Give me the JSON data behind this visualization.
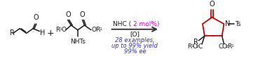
{
  "fig_width": 3.78,
  "fig_height": 0.97,
  "dpi": 100,
  "bg_color": "#ffffff",
  "arrow_color": "#333333",
  "structure_color": "#1a1a1a",
  "red_color": "#cc0000",
  "purple_color": "#cc00cc",
  "blue_color": "#3333cc",
  "nhc_text1": "NHC ( ",
  "nhc_text2": "2 mol%)",
  "oxidant_label": "[O]",
  "stats_line1": "28 examples,",
  "stats_line2": "up to 99% yield",
  "stats_line3": "99% ee",
  "ts_label": "Ts",
  "nhts_label": "NHTs"
}
